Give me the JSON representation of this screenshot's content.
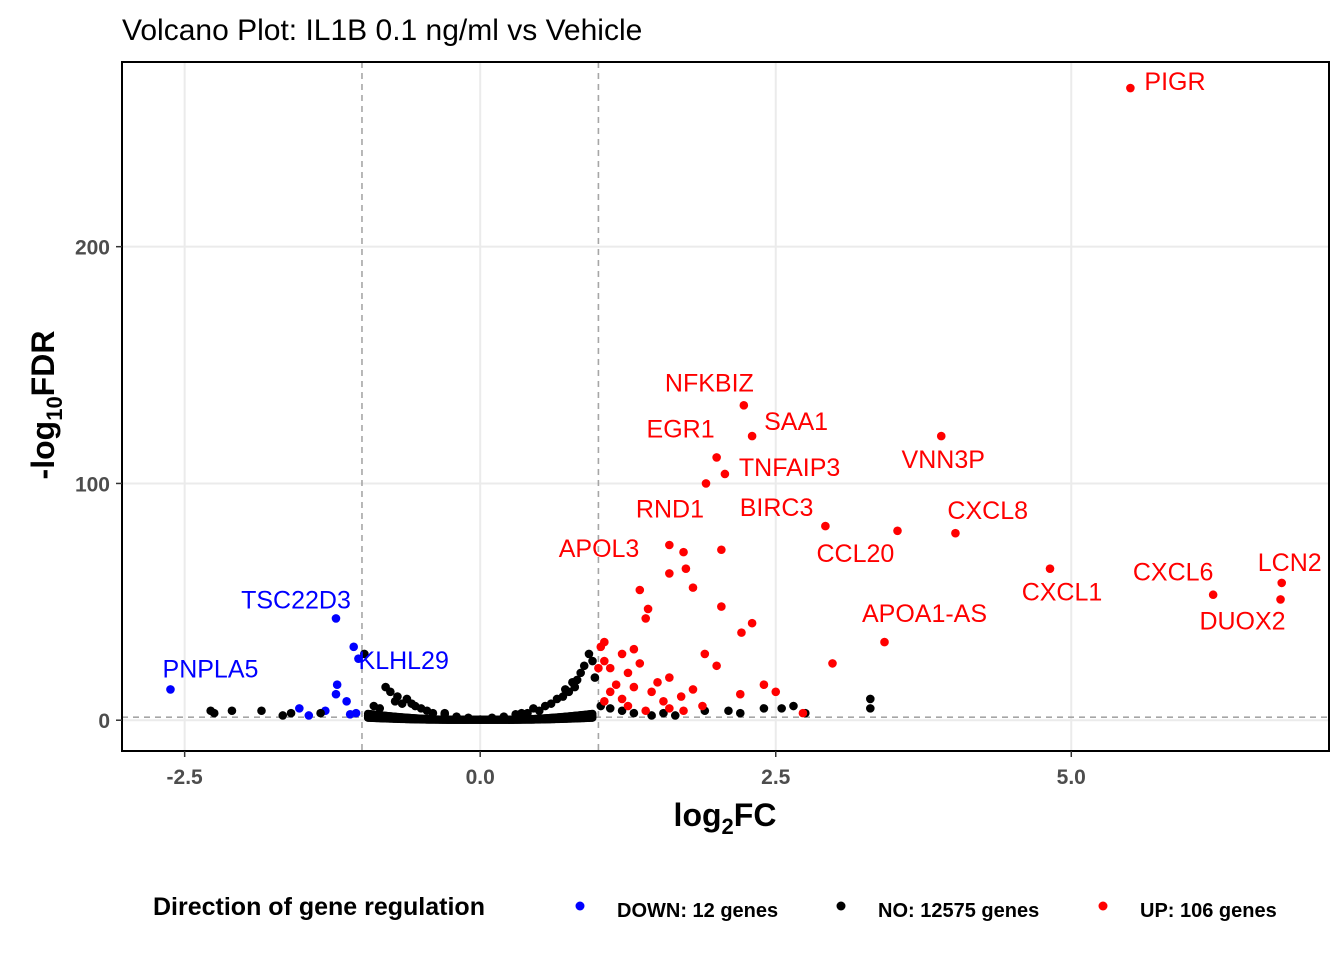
{
  "chart_data": {
    "type": "scatter",
    "title": "Volcano Plot: IL1B 0.1 ng/ml vs Vehicle",
    "xlabel": {
      "base": "log",
      "sub": "2",
      "rest": "FC"
    },
    "ylabel": {
      "prefix": "-log",
      "sub": "10",
      "rest": "FDR"
    },
    "xlim": [
      -3.03,
      7.18
    ],
    "ylim": [
      -13,
      278
    ],
    "x_ticks": [
      {
        "value": -2.5,
        "label": "-2.5"
      },
      {
        "value": 0.0,
        "label": "0.0"
      },
      {
        "value": 2.5,
        "label": "2.5"
      },
      {
        "value": 5.0,
        "label": "5.0"
      }
    ],
    "y_ticks": [
      {
        "value": 0,
        "label": "0"
      },
      {
        "value": 100,
        "label": "100"
      },
      {
        "value": 200,
        "label": "200"
      }
    ],
    "thresholds": {
      "log2fc": [
        -1,
        1
      ],
      "neg_log10_fdr": 1.3
    },
    "grid": true,
    "legend_position": "bottom",
    "colors": {
      "DOWN": "#0000ff",
      "NO": "#000000",
      "UP": "#ff0000",
      "grid": "#ebebeb",
      "threshold": "#a6a6a6"
    },
    "legend": {
      "title": "Direction of gene regulation",
      "entries": [
        {
          "key": "DOWN",
          "label": "DOWN: 12 genes"
        },
        {
          "key": "NO",
          "label": "NO: 12575 genes"
        },
        {
          "key": "UP",
          "label": "UP: 106 genes"
        }
      ]
    },
    "series": [
      {
        "name": "DOWN: 12 genes",
        "key": "DOWN",
        "points": [
          [
            -2.62,
            13
          ],
          [
            -1.53,
            5
          ],
          [
            -1.22,
            43
          ],
          [
            -1.21,
            15
          ],
          [
            -1.22,
            11
          ],
          [
            -1.13,
            8
          ],
          [
            -1.07,
            31
          ],
          [
            -1.03,
            26
          ],
          [
            -1.31,
            4
          ],
          [
            -1.05,
            3
          ],
          [
            -1.1,
            2.5
          ],
          [
            -1.45,
            2
          ]
        ]
      },
      {
        "name": "NO: 12575 genes",
        "key": "NO",
        "points": [
          [
            -2.28,
            4
          ],
          [
            -2.25,
            3
          ],
          [
            -2.1,
            4
          ],
          [
            -1.85,
            4
          ],
          [
            -1.67,
            2
          ],
          [
            -1.6,
            3
          ],
          [
            -1.35,
            3
          ],
          [
            -0.98,
            28
          ],
          [
            -0.87,
            2
          ],
          [
            -0.85,
            5
          ],
          [
            -0.8,
            14
          ],
          [
            -0.76,
            12
          ],
          [
            -0.72,
            8
          ],
          [
            -0.7,
            10
          ],
          [
            -0.66,
            7
          ],
          [
            -0.62,
            9
          ],
          [
            -0.58,
            7
          ],
          [
            -0.55,
            6
          ],
          [
            -0.5,
            5
          ],
          [
            -0.45,
            4
          ],
          [
            -0.4,
            3
          ],
          [
            -0.3,
            2.5
          ],
          [
            -0.2,
            1.5
          ],
          [
            -0.1,
            1
          ],
          [
            0.0,
            0.3
          ],
          [
            0.1,
            1
          ],
          [
            0.2,
            1.5
          ],
          [
            0.3,
            2.5
          ],
          [
            0.4,
            3
          ],
          [
            0.5,
            4
          ],
          [
            0.55,
            6
          ],
          [
            0.6,
            7
          ],
          [
            0.65,
            9
          ],
          [
            0.7,
            10
          ],
          [
            0.75,
            12
          ],
          [
            0.8,
            14
          ],
          [
            0.82,
            17
          ],
          [
            0.85,
            20
          ],
          [
            0.88,
            23
          ],
          [
            0.92,
            28
          ],
          [
            0.95,
            25
          ],
          [
            0.97,
            18
          ],
          [
            1.02,
            6
          ],
          [
            1.1,
            5
          ],
          [
            1.2,
            4
          ],
          [
            1.3,
            3
          ],
          [
            1.45,
            2
          ],
          [
            1.55,
            3
          ],
          [
            1.65,
            2
          ],
          [
            1.9,
            4
          ],
          [
            2.1,
            4
          ],
          [
            2.2,
            3
          ],
          [
            2.4,
            5
          ],
          [
            2.55,
            5
          ],
          [
            2.65,
            6
          ],
          [
            2.75,
            3
          ],
          [
            3.3,
            9
          ],
          [
            3.3,
            5
          ],
          [
            -0.9,
            6
          ],
          [
            -0.3,
            3
          ],
          [
            0.35,
            3
          ],
          [
            0.45,
            5
          ],
          [
            0.72,
            13
          ],
          [
            0.78,
            16
          ]
        ]
      },
      {
        "name": "UP: 106 genes",
        "key": "UP",
        "points": [
          [
            5.5,
            267
          ],
          [
            2.23,
            133
          ],
          [
            2.3,
            120
          ],
          [
            2.0,
            111
          ],
          [
            2.07,
            104
          ],
          [
            1.91,
            100
          ],
          [
            3.9,
            120
          ],
          [
            4.02,
            79
          ],
          [
            2.92,
            82
          ],
          [
            3.53,
            80
          ],
          [
            1.6,
            74
          ],
          [
            1.72,
            71
          ],
          [
            2.04,
            72
          ],
          [
            1.74,
            64
          ],
          [
            1.6,
            62
          ],
          [
            1.8,
            56
          ],
          [
            1.35,
            55
          ],
          [
            4.82,
            64
          ],
          [
            6.78,
            58
          ],
          [
            6.2,
            53
          ],
          [
            6.77,
            51
          ],
          [
            1.42,
            47
          ],
          [
            1.4,
            43
          ],
          [
            2.04,
            48
          ],
          [
            2.3,
            41
          ],
          [
            2.21,
            37
          ],
          [
            3.42,
            33
          ],
          [
            2.98,
            24
          ],
          [
            1.02,
            31
          ],
          [
            1.05,
            33
          ],
          [
            1.2,
            28
          ],
          [
            1.3,
            30
          ],
          [
            1.05,
            25
          ],
          [
            1.1,
            22
          ],
          [
            1.25,
            20
          ],
          [
            1.35,
            24
          ],
          [
            1.0,
            22
          ],
          [
            1.6,
            18
          ],
          [
            1.5,
            16
          ],
          [
            1.8,
            13
          ],
          [
            2.2,
            11
          ],
          [
            2.5,
            12
          ],
          [
            2.4,
            15
          ],
          [
            1.9,
            28
          ],
          [
            2.0,
            23
          ],
          [
            1.1,
            12
          ],
          [
            1.2,
            9
          ],
          [
            1.15,
            15
          ],
          [
            1.3,
            14
          ],
          [
            1.45,
            12
          ],
          [
            1.7,
            10
          ],
          [
            1.05,
            8
          ],
          [
            1.25,
            6
          ],
          [
            1.6,
            5
          ],
          [
            1.72,
            4
          ],
          [
            2.73,
            3
          ],
          [
            1.4,
            4
          ],
          [
            1.55,
            8
          ],
          [
            1.88,
            6
          ]
        ]
      }
    ],
    "labels": [
      {
        "text": "PIGR",
        "key": "UP",
        "x": 5.5,
        "y": 267,
        "dx": 14,
        "dy": 2,
        "anchor": "start"
      },
      {
        "text": "NFKBIZ",
        "key": "UP",
        "x": 2.23,
        "y": 133,
        "dx": 10,
        "dy": -14,
        "anchor": "end"
      },
      {
        "text": "SAA1",
        "key": "UP",
        "x": 2.3,
        "y": 120,
        "dx": 12,
        "dy": -6,
        "anchor": "start"
      },
      {
        "text": "EGR1",
        "key": "UP",
        "x": 2.0,
        "y": 111,
        "dx": -2,
        "dy": -20,
        "anchor": "end"
      },
      {
        "text": "TNFAIP3",
        "key": "UP",
        "x": 2.07,
        "y": 104,
        "dx": 14,
        "dy": 2,
        "anchor": "start"
      },
      {
        "text": "VNN3P",
        "key": "UP",
        "x": 3.9,
        "y": 120,
        "dx": 2,
        "dy": 32,
        "anchor": "middle"
      },
      {
        "text": "RND1",
        "key": "UP",
        "x": 1.91,
        "y": 100,
        "dx": -2,
        "dy": 34,
        "anchor": "end"
      },
      {
        "text": "BIRC3",
        "key": "UP",
        "x": 2.92,
        "y": 82,
        "dx": -12,
        "dy": -10,
        "anchor": "end"
      },
      {
        "text": "CXCL8",
        "key": "UP",
        "x": 4.02,
        "y": 79,
        "dx": -8,
        "dy": -14,
        "anchor": "start"
      },
      {
        "text": "CCL20",
        "key": "UP",
        "x": 2.92,
        "y": 82,
        "dx": 30,
        "dy": 36,
        "anchor": "middle"
      },
      {
        "text": "APOL3",
        "key": "UP",
        "x": 1.6,
        "y": 74,
        "dx": -30,
        "dy": 12,
        "anchor": "end"
      },
      {
        "text": "CXCL6",
        "key": "UP",
        "x": 6.2,
        "y": 53,
        "dx": -40,
        "dy": -14,
        "anchor": "middle"
      },
      {
        "text": "LCN2",
        "key": "UP",
        "x": 6.78,
        "y": 58,
        "dx": 8,
        "dy": -12,
        "anchor": "middle"
      },
      {
        "text": "CXCL1",
        "key": "UP",
        "x": 4.82,
        "y": 64,
        "dx": 12,
        "dy": 32,
        "anchor": "middle"
      },
      {
        "text": "DUOX2",
        "key": "UP",
        "x": 6.77,
        "y": 51,
        "dx": -38,
        "dy": 30,
        "anchor": "middle"
      },
      {
        "text": "APOA1-AS",
        "key": "UP",
        "x": 3.42,
        "y": 33,
        "dx": 40,
        "dy": -20,
        "anchor": "middle"
      },
      {
        "text": "TSC22D3",
        "key": "DOWN",
        "x": -1.22,
        "y": 43,
        "dx": -40,
        "dy": -10,
        "anchor": "middle"
      },
      {
        "text": "PNPLA5",
        "key": "DOWN",
        "x": -2.62,
        "y": 13,
        "dx": 40,
        "dy": -12,
        "anchor": "middle"
      },
      {
        "text": "KLHL29",
        "key": "DOWN",
        "x": -1.07,
        "y": 31,
        "dx": 50,
        "dy": 22,
        "anchor": "middle"
      }
    ]
  }
}
